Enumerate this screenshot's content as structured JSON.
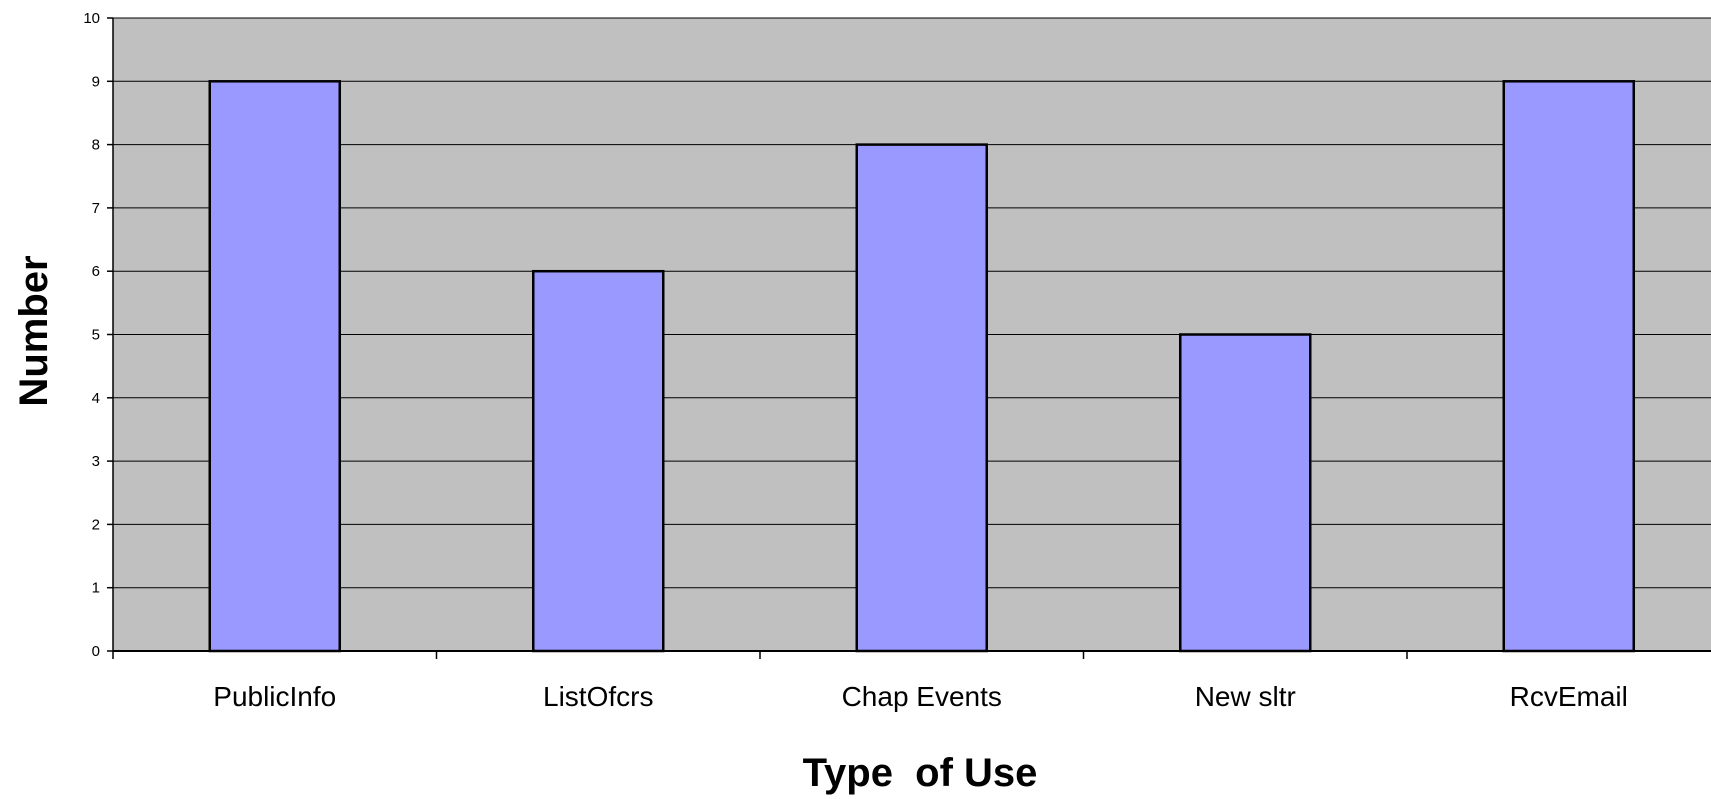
{
  "chart_data": {
    "type": "bar",
    "title": "",
    "xlabel": "Type  of Use",
    "ylabel": "Number",
    "categories": [
      "PublicInfo",
      "ListOfcrs",
      "Chap Events",
      "New sltr",
      "RcvEmail"
    ],
    "values": [
      9,
      6,
      8,
      5,
      9
    ],
    "ylim": [
      0,
      10
    ],
    "yticks": [
      "0",
      "1",
      "2",
      "3",
      "4",
      "5",
      "6",
      "7",
      "8",
      "9",
      "10"
    ],
    "grid": true,
    "legend": "none",
    "colors": {
      "plot_background": "#c0c0c0",
      "bar_fill": "#9999ff",
      "bar_stroke": "#000000",
      "grid": "#000000"
    }
  }
}
